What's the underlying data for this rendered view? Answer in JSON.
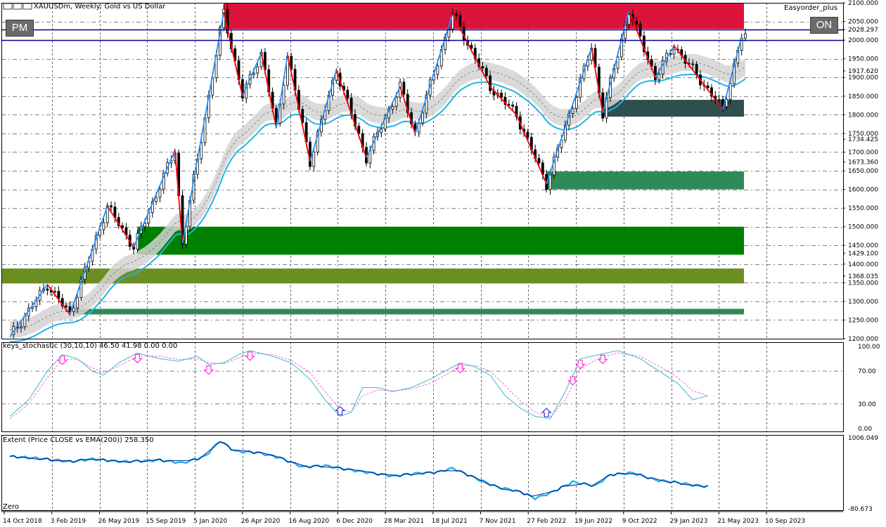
{
  "window": {
    "title": "XAUUSDm, Weekly:  Gold vs US Dollar",
    "expert": "Easyorder_plus",
    "pm_label": "PM",
    "on_label": "ON"
  },
  "indicators": {
    "stoch_label": "keys_stochastic (30,10,10) 46.50 41.98 0.00 0.00",
    "extent_label": "Extent (Price CLOSE vs EMA(200)) 258.350",
    "zero_label": "Zero"
  },
  "colors": {
    "bg": "#ffffff",
    "grid": "#000000",
    "candle": "#000000",
    "zigzag_up": "#1e90ff",
    "zigzag_down": "#ff0000",
    "ema": "#1fb4e6",
    "band": "#d3d3d3",
    "supply_zone": "#dc143c",
    "demand_zone": "#008000",
    "olive_zone": "#6b8e23",
    "seagreen_zone": "#2e8b57",
    "slate_zone": "#2f4f4f",
    "hline": "#00008b",
    "stoch_main": "#3cb8c8",
    "stoch_signal": "#ff66cc",
    "extent_line": "#00008b",
    "extent_line2": "#1fb4e6"
  },
  "chart_data": [
    {
      "type": "candlestick",
      "symbol": "XAUUSDm",
      "timeframe": "Weekly",
      "y_range": [
        1200,
        2100
      ],
      "price_labels": [
        "2100.000",
        "2050.000",
        "2028.297",
        "2000.000",
        "1950.000",
        "1917.620",
        "1900.000",
        "1850.000",
        "1800.000",
        "1750.000",
        "1734.425",
        "1700.000",
        "1673.360",
        "1650.000",
        "1600.000",
        "1550.000",
        "1500.000",
        "1450.000",
        "1429.100",
        "1400.000",
        "1368.035",
        "1350.000",
        "1300.000",
        "1250.000",
        "1200.000"
      ],
      "x_labels": [
        "14 Oct 2018",
        "3 Feb 2019",
        "26 May 2019",
        "15 Sep 2019",
        "5 Jan 2020",
        "26 Apr 2020",
        "16 Aug 2020",
        "6 Dec 2020",
        "28 Mar 2021",
        "18 Jul 2021",
        "7 Nov 2021",
        "27 Feb 2022",
        "19 Jun 2022",
        "9 Oct 2022",
        "29 Jan 2023",
        "21 May 2023",
        "10 Sep 2023"
      ],
      "horizontal_lines": [
        2028.297,
        2000
      ],
      "zigzag_points": [
        [
          0,
          1205
        ],
        [
          10,
          1345
        ],
        [
          16,
          1265
        ],
        [
          26,
          1555
        ],
        [
          33,
          1445
        ],
        [
          44,
          1705
        ],
        [
          46,
          1455
        ],
        [
          57,
          2075
        ],
        [
          62,
          1850
        ],
        [
          67,
          1965
        ],
        [
          71,
          1765
        ],
        [
          74,
          1960
        ],
        [
          80,
          1675
        ],
        [
          87,
          1920
        ],
        [
          95,
          1685
        ],
        [
          104,
          1875
        ],
        [
          108,
          1750
        ],
        [
          118,
          2070
        ],
        [
          128,
          1875
        ],
        [
          135,
          1800
        ],
        [
          143,
          1615
        ],
        [
          155,
          1980
        ],
        [
          158,
          1805
        ],
        [
          165,
          2080
        ],
        [
          172,
          1900
        ],
        [
          177,
          1985
        ],
        [
          190,
          1815
        ],
        [
          195,
          2010
        ]
      ],
      "zones": [
        {
          "name": "supply",
          "from": 2030,
          "to": 2100,
          "start_week": 57
        },
        {
          "name": "slate",
          "from": 1795,
          "to": 1840,
          "start_week": 158
        },
        {
          "name": "seagreen-upper",
          "from": 1600,
          "to": 1648,
          "start_week": 143
        },
        {
          "name": "demand",
          "from": 1425,
          "to": 1500,
          "start_week": 34
        },
        {
          "name": "olive",
          "from": 1348,
          "to": 1388,
          "start_week": 0
        },
        {
          "name": "seagreen-lower",
          "from": 1265,
          "to": 1280,
          "start_week": 17
        }
      ]
    },
    {
      "type": "line",
      "name": "keys_stochastic (30,10,10)",
      "y_range": [
        0,
        100
      ],
      "y_labels": [
        "100.00",
        "70.00",
        "30.00",
        "0.00"
      ],
      "main": [
        [
          0,
          15
        ],
        [
          5,
          35
        ],
        [
          10,
          70
        ],
        [
          14,
          90
        ],
        [
          18,
          85
        ],
        [
          22,
          70
        ],
        [
          25,
          65
        ],
        [
          29,
          80
        ],
        [
          34,
          92
        ],
        [
          40,
          85
        ],
        [
          45,
          82
        ],
        [
          50,
          88
        ],
        [
          53,
          78
        ],
        [
          57,
          80
        ],
        [
          61,
          90
        ],
        [
          64,
          95
        ],
        [
          70,
          88
        ],
        [
          75,
          80
        ],
        [
          80,
          60
        ],
        [
          84,
          35
        ],
        [
          88,
          15
        ],
        [
          91,
          20
        ],
        [
          94,
          50
        ],
        [
          98,
          50
        ],
        [
          102,
          45
        ],
        [
          107,
          50
        ],
        [
          112,
          60
        ],
        [
          116,
          70
        ],
        [
          120,
          80
        ],
        [
          124,
          75
        ],
        [
          128,
          65
        ],
        [
          132,
          40
        ],
        [
          136,
          25
        ],
        [
          140,
          15
        ],
        [
          144,
          12
        ],
        [
          148,
          45
        ],
        [
          152,
          85
        ],
        [
          157,
          90
        ],
        [
          162,
          95
        ],
        [
          168,
          85
        ],
        [
          173,
          70
        ],
        [
          178,
          55
        ],
        [
          182,
          35
        ],
        [
          186,
          40
        ]
      ],
      "signal": [
        [
          0,
          12
        ],
        [
          5,
          30
        ],
        [
          10,
          62
        ],
        [
          14,
          84
        ],
        [
          18,
          84
        ],
        [
          22,
          74
        ],
        [
          25,
          68
        ],
        [
          29,
          76
        ],
        [
          34,
          88
        ],
        [
          40,
          88
        ],
        [
          45,
          84
        ],
        [
          50,
          85
        ],
        [
          53,
          80
        ],
        [
          57,
          79
        ],
        [
          61,
          86
        ],
        [
          64,
          92
        ],
        [
          70,
          90
        ],
        [
          75,
          83
        ],
        [
          80,
          68
        ],
        [
          84,
          45
        ],
        [
          88,
          24
        ],
        [
          91,
          20
        ],
        [
          94,
          40
        ],
        [
          98,
          47
        ],
        [
          102,
          46
        ],
        [
          107,
          48
        ],
        [
          112,
          55
        ],
        [
          116,
          65
        ],
        [
          120,
          76
        ],
        [
          124,
          77
        ],
        [
          128,
          70
        ],
        [
          132,
          52
        ],
        [
          136,
          34
        ],
        [
          140,
          20
        ],
        [
          144,
          14
        ],
        [
          148,
          35
        ],
        [
          152,
          72
        ],
        [
          157,
          86
        ],
        [
          162,
          92
        ],
        [
          168,
          88
        ],
        [
          173,
          76
        ],
        [
          178,
          62
        ],
        [
          182,
          46
        ],
        [
          186,
          40
        ]
      ],
      "arrows_down": [
        14,
        34,
        53,
        64,
        120,
        150,
        152,
        158
      ],
      "arrows_up": [
        88,
        143
      ]
    },
    {
      "type": "line",
      "name": "Extent (Price CLOSE vs EMA(200))",
      "y_range": [
        -80.673,
        1006.049
      ],
      "y_labels": [
        "1006.049",
        "-80.673"
      ],
      "values": [
        [
          0,
          720
        ],
        [
          8,
          690
        ],
        [
          16,
          640
        ],
        [
          22,
          680
        ],
        [
          30,
          640
        ],
        [
          40,
          665
        ],
        [
          46,
          620
        ],
        [
          52,
          720
        ],
        [
          56,
          960
        ],
        [
          60,
          800
        ],
        [
          66,
          780
        ],
        [
          72,
          700
        ],
        [
          78,
          560
        ],
        [
          84,
          580
        ],
        [
          90,
          520
        ],
        [
          96,
          470
        ],
        [
          102,
          420
        ],
        [
          108,
          460
        ],
        [
          114,
          480
        ],
        [
          118,
          540
        ],
        [
          124,
          390
        ],
        [
          130,
          250
        ],
        [
          136,
          180
        ],
        [
          140,
          80
        ],
        [
          144,
          160
        ],
        [
          150,
          330
        ],
        [
          156,
          270
        ],
        [
          160,
          440
        ],
        [
          166,
          470
        ],
        [
          172,
          360
        ],
        [
          178,
          320
        ],
        [
          182,
          280
        ],
        [
          186,
          260
        ]
      ]
    }
  ]
}
